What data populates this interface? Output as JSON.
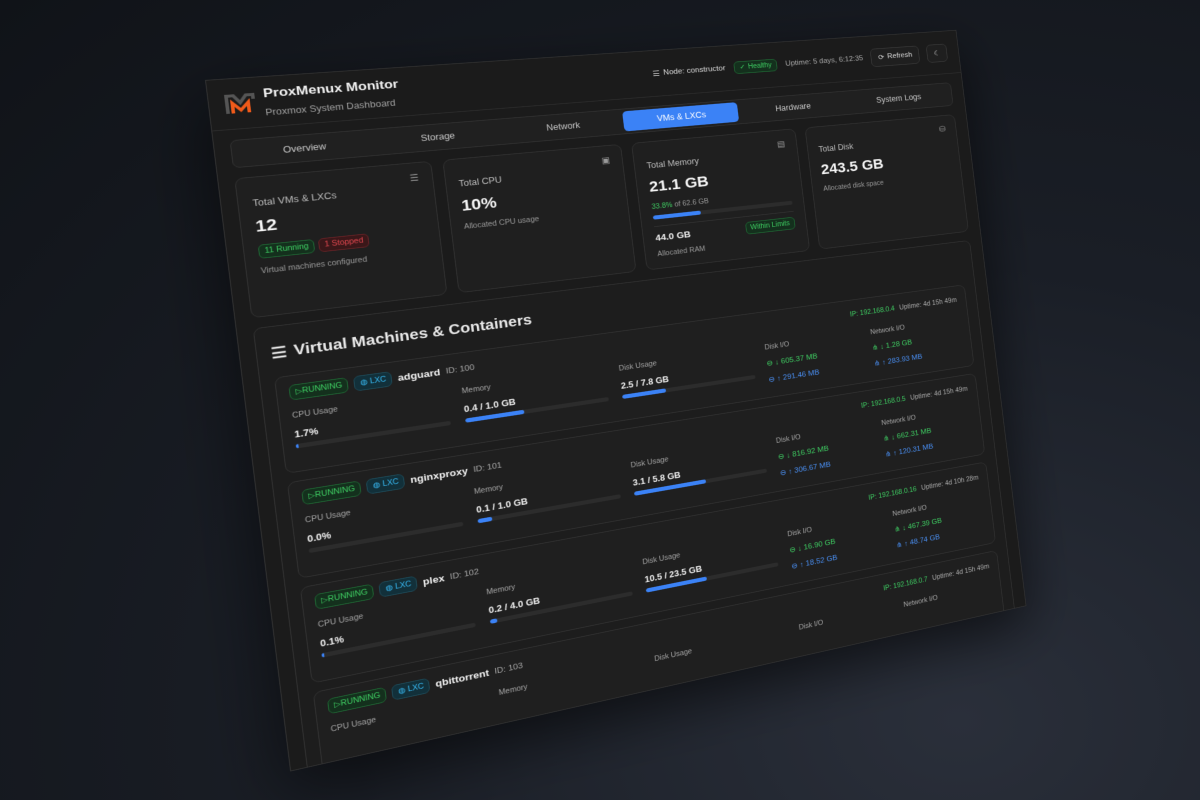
{
  "header": {
    "title": "ProxMenux Monitor",
    "subtitle": "Proxmox System Dashboard",
    "node": "Node: constructor",
    "health": "Healthy",
    "uptime": "Uptime: 5 days, 6:12:35",
    "refresh": "Refresh"
  },
  "tabs": [
    "Overview",
    "Storage",
    "Network",
    "VMs & LXCs",
    "Hardware",
    "System Logs"
  ],
  "active_tab": "VMs & LXCs",
  "colors": {
    "accent": "#3b82f6",
    "running": "#3fcf63",
    "stopped": "#e0474f",
    "lxc": "#38bdf8",
    "upload": "#4a90f5"
  },
  "cards": {
    "vms": {
      "label": "Total VMs & LXCs",
      "value": "12",
      "running": "11 Running",
      "stopped": "1 Stopped",
      "sub": "Virtual machines configured"
    },
    "cpu": {
      "label": "Total CPU",
      "value": "10%",
      "sub": "Allocated CPU usage"
    },
    "memory": {
      "label": "Total Memory",
      "value": "21.1 GB",
      "pct": "33.8%",
      "of": " of 62.6 GB",
      "fill": 33.8,
      "allocated": "44.0 GB",
      "allocated_label": "Allocated RAM",
      "status": "Within Limits"
    },
    "disk": {
      "label": "Total Disk",
      "value": "243.5 GB",
      "sub": "Allocated disk space"
    }
  },
  "section": {
    "title": "Virtual Machines & Containers"
  },
  "labels": {
    "cpu": "CPU Usage",
    "memory": "Memory",
    "disk": "Disk Usage",
    "diskio": "Disk I/O",
    "netio": "Network I/O"
  },
  "vms": [
    {
      "status": "RUNNING",
      "type": "LXC",
      "name": "adguard",
      "id": "ID: 100",
      "ip": "IP: 192.168.0.4",
      "uptime": "Uptime: 4d 15h 49m",
      "cpu": "1.7%",
      "cpu_pct": 1.7,
      "mem": "0.4 / 1.0 GB",
      "mem_pct": 40,
      "disk": "2.5 / 7.8 GB",
      "disk_pct": 32,
      "disk_read": "↓ 605.37 MB",
      "disk_write": "↑ 291.46 MB",
      "net_in": "↓ 1.28 GB",
      "net_out": "↑ 283.93 MB"
    },
    {
      "status": "RUNNING",
      "type": "LXC",
      "name": "nginxproxy",
      "id": "ID: 101",
      "ip": "IP: 192.168.0.5",
      "uptime": "Uptime: 4d 15h 49m",
      "cpu": "0.0%",
      "cpu_pct": 0,
      "mem": "0.1 / 1.0 GB",
      "mem_pct": 10,
      "disk": "3.1 / 5.8 GB",
      "disk_pct": 53,
      "disk_read": "↓ 816.92 MB",
      "disk_write": "↑ 306.67 MB",
      "net_in": "↓ 662.31 MB",
      "net_out": "↑ 120.31 MB"
    },
    {
      "status": "RUNNING",
      "type": "LXC",
      "name": "plex",
      "id": "ID: 102",
      "ip": "IP: 192.168.0.16",
      "uptime": "Uptime: 4d 10h 28m",
      "cpu": "0.1%",
      "cpu_pct": 0.1,
      "mem": "0.2 / 4.0 GB",
      "mem_pct": 5,
      "disk": "10.5 / 23.5 GB",
      "disk_pct": 45,
      "disk_read": "↓ 16.90 GB",
      "disk_write": "↑ 18.52 GB",
      "net_in": "↓ 467.39 GB",
      "net_out": "↑ 48.74 GB"
    },
    {
      "status": "RUNNING",
      "type": "LXC",
      "name": "qbittorrent",
      "id": "ID: 103",
      "ip": "IP: 192.168.0.7",
      "uptime": "Uptime: 4d 15h 49m"
    }
  ]
}
